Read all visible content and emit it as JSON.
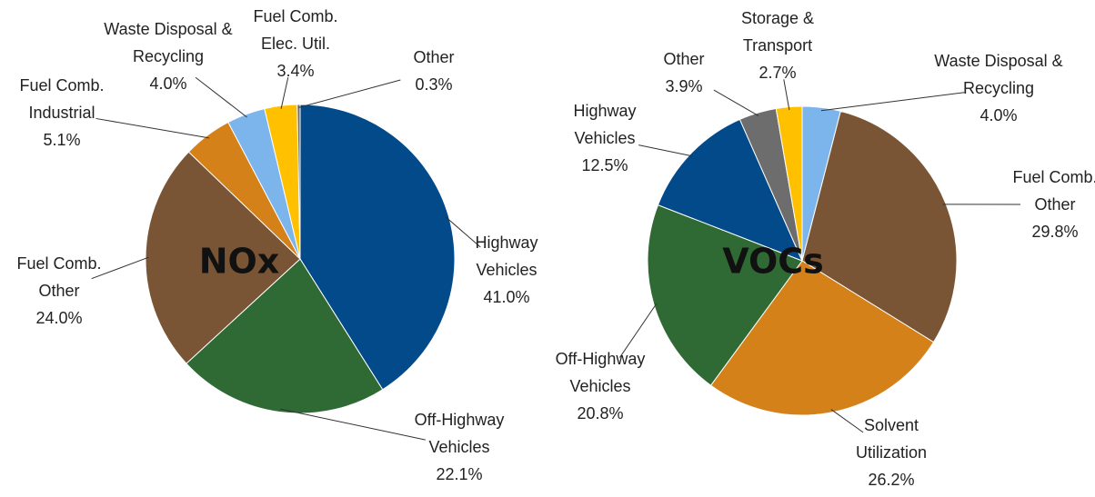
{
  "chart_data": [
    {
      "type": "pie",
      "title": "NOx",
      "categories": [
        "Highway Vehicles",
        "Off-Highway Vehicles",
        "Fuel Comb. Other",
        "Fuel Comb. Industrial",
        "Waste Disposal & Recycling",
        "Fuel Comb. Elec. Util.",
        "Other"
      ],
      "values": [
        41.0,
        22.1,
        24.0,
        5.1,
        4.0,
        3.4,
        0.3
      ],
      "value_labels": [
        "41.0%",
        "22.1%",
        "24.0%",
        "5.1%",
        "4.0%",
        "3.4%",
        "0.3%"
      ],
      "colors": [
        "#034a8a",
        "#2f6a34",
        "#7a5535",
        "#d4811a",
        "#7cb5ec",
        "#ffc000",
        "#6d6d6d"
      ]
    },
    {
      "type": "pie",
      "title": "VOCs",
      "categories": [
        "Waste Disposal & Recycling",
        "Fuel Comb. Other",
        "Solvent Utilization",
        "Off-Highway Vehicles",
        "Highway Vehicles",
        "Other",
        "Storage & Transport"
      ],
      "values": [
        4.0,
        29.8,
        26.2,
        20.8,
        12.5,
        3.9,
        2.7
      ],
      "value_labels": [
        "4.0%",
        "29.8%",
        "26.2%",
        "20.8%",
        "12.5%",
        "3.9%",
        "2.7%"
      ],
      "colors": [
        "#7cb5ec",
        "#7a5535",
        "#d4811a",
        "#2f6a34",
        "#034a8a",
        "#6d6d6d",
        "#ffc000"
      ]
    }
  ]
}
